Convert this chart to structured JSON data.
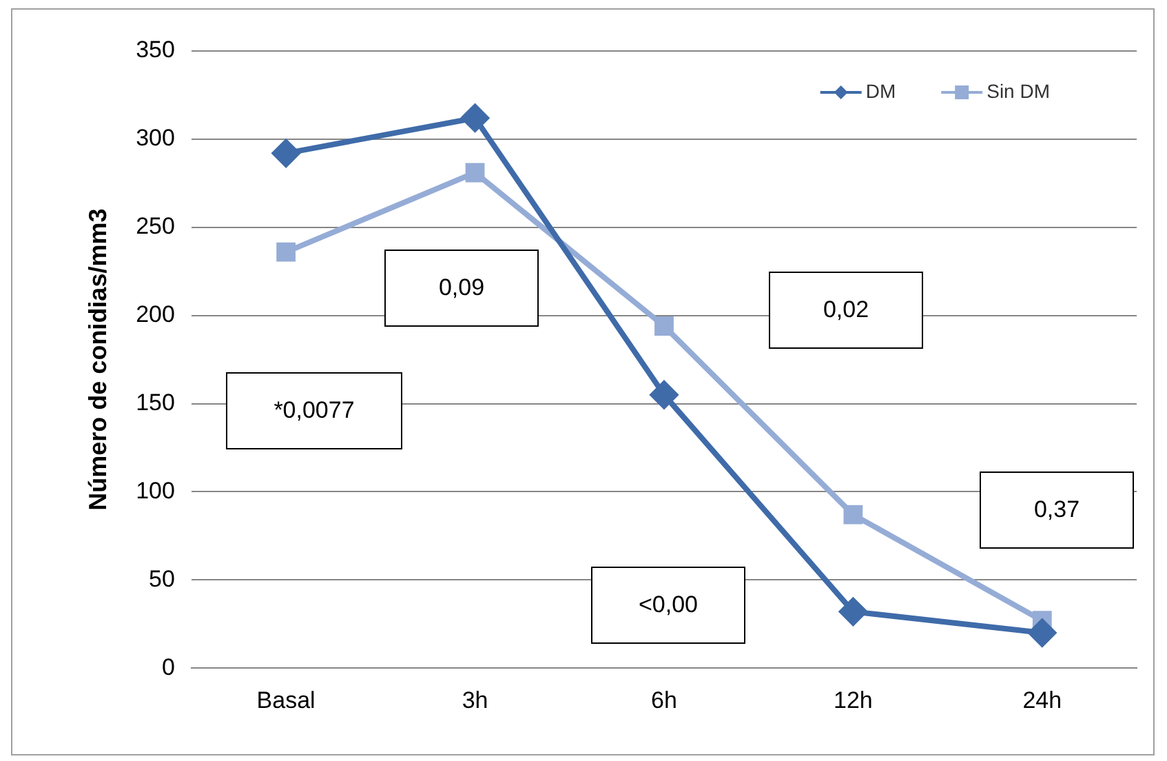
{
  "chart_data": {
    "type": "line",
    "ylabel": "Número de conidias/mm3",
    "categories": [
      "Basal",
      "3h",
      "6h",
      "12h",
      "24h"
    ],
    "series": [
      {
        "name": "DM",
        "color": "#3f6ba9",
        "values": [
          292,
          312,
          155,
          32,
          20
        ],
        "marker": "diamond"
      },
      {
        "name": "Sin DM",
        "color": "#95acd6",
        "values": [
          236,
          281,
          194,
          87,
          27
        ],
        "marker": "square"
      }
    ],
    "ylim": [
      0,
      350
    ],
    "yticks": [
      0,
      50,
      100,
      150,
      200,
      250,
      300,
      350
    ],
    "grid": "y",
    "legend": "top right",
    "line_style": "solid",
    "annotations": [
      "*0,0077",
      "0,09",
      "0,02",
      "<0,00",
      "0,37"
    ]
  }
}
